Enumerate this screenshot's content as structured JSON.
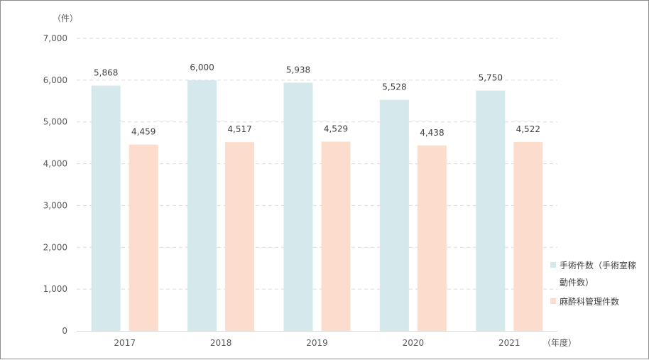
{
  "colors": {
    "series1": "#d5e8eb",
    "series2": "#fcdccd",
    "grid": "#d9d9d9",
    "axis": "#d9d9d9"
  },
  "chart_data": {
    "type": "bar",
    "y_unit": "（件）",
    "x_unit": "（年度）",
    "categories": [
      "2017",
      "2018",
      "2019",
      "2020",
      "2021"
    ],
    "ylim": [
      0,
      7000
    ],
    "yticks": [
      "0",
      "1,000",
      "2,000",
      "3,000",
      "4,000",
      "5,000",
      "6,000",
      "7,000"
    ],
    "grid": true,
    "legend_placement": "right",
    "series": [
      {
        "name": "手術件数（手術室稼動件数）",
        "legend_lines": [
          "手術件数（手術室稼",
          "動件数）"
        ],
        "values": [
          5868,
          6000,
          5938,
          5528,
          5750
        ],
        "labels": [
          "5,868",
          "6,000",
          "5,938",
          "5,528",
          "5,750"
        ]
      },
      {
        "name": "麻酔科管理件数",
        "legend_lines": [
          "麻酔科管理件数"
        ],
        "values": [
          4459,
          4517,
          4529,
          4438,
          4522
        ],
        "labels": [
          "4,459",
          "4,517",
          "4,529",
          "4,438",
          "4,522"
        ]
      }
    ]
  }
}
